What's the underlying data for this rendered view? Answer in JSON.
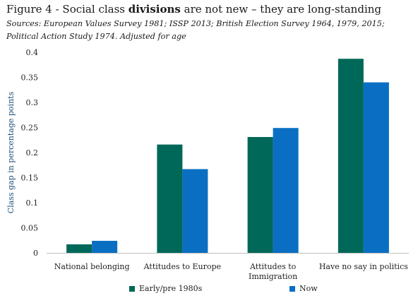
{
  "header": {
    "title_prefix": "Figure 4 - Social class ",
    "title_bold": "divisions",
    "title_suffix": " are not new – they are long-standing",
    "source_line1": "Sources: European Values Survey 1981; ISSP 2013; British Election Survey 1964, 1979, 2015;",
    "source_line2": "Political Action Study 1974. Adjusted for age"
  },
  "chart_data": {
    "type": "bar",
    "categories": [
      "National belonging",
      "Attitudes to Europe",
      "Attitudes to Immigration",
      "Have no say in politics"
    ],
    "category_lines": [
      [
        "National belonging"
      ],
      [
        "Attitudes to Europe"
      ],
      [
        "Attitudes to",
        "Immigration"
      ],
      [
        "Have no say in politics"
      ]
    ],
    "series": [
      {
        "name": "Early/pre 1980s",
        "color": "#006858",
        "values": [
          0.017,
          0.216,
          0.231,
          0.387
        ]
      },
      {
        "name": "Now",
        "color": "#0a6fc2",
        "values": [
          0.024,
          0.167,
          0.249,
          0.34
        ]
      }
    ],
    "ylabel": "Class gap in percentage points",
    "ylim": [
      0,
      0.4
    ],
    "yticks": [
      "0",
      "0.05",
      "0.1",
      "0.15",
      "0.2",
      "0.25",
      "0.3",
      "0.35",
      "0.4"
    ],
    "legend_position": "bottom",
    "grid": false
  }
}
